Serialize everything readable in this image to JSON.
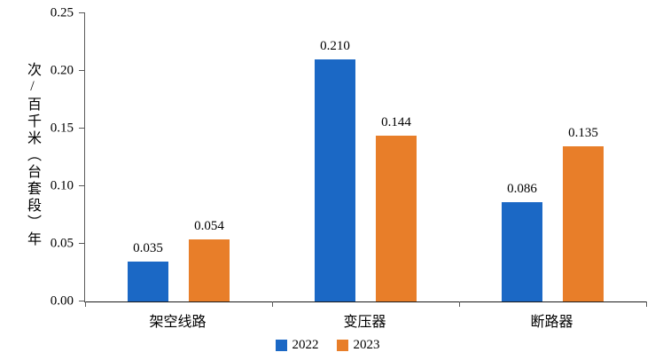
{
  "chart_data": {
    "type": "bar",
    "title": "",
    "ylabel": "次/百千米（台套段）年",
    "categories": [
      "架空线路",
      "变压器",
      "断路器"
    ],
    "series": [
      {
        "name": "2022",
        "color": "#1b68c5",
        "values": [
          0.035,
          0.21,
          0.086
        ]
      },
      {
        "name": "2023",
        "color": "#e87e29",
        "values": [
          0.054,
          0.144,
          0.135
        ]
      }
    ],
    "ylim": [
      0,
      0.25
    ],
    "yticks": [
      "0.00",
      "0.05",
      "0.10",
      "0.15",
      "0.20",
      "0.25"
    ],
    "grid": false,
    "legend_position": "bottom",
    "value_labels": true
  }
}
